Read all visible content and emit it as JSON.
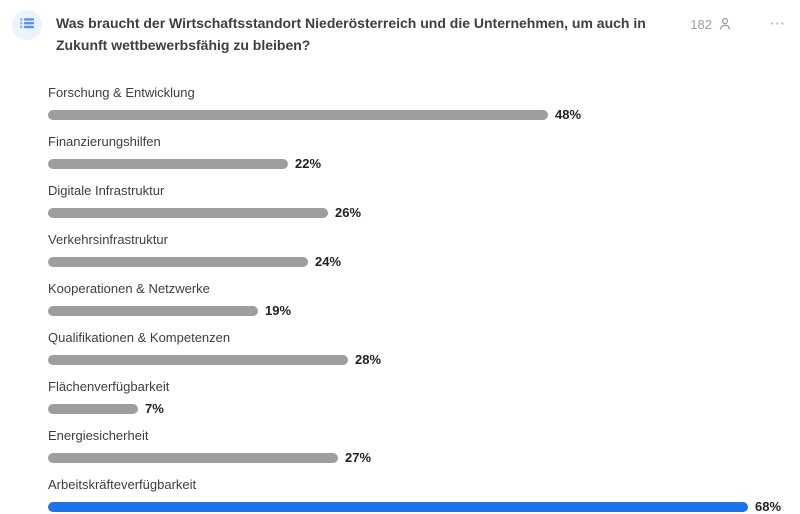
{
  "header": {
    "question": "Was braucht der Wirtschaftsstandort Niederösterreich und die Unternehmen, um auch in Zukunft wettbewerbsfähig zu bleiben?",
    "question_type_icon": "bulleted-list-icon",
    "respondents_count": "182",
    "respondents_icon": "person-icon",
    "menu_label": "···"
  },
  "colors": {
    "bar_default": "#9e9e9e",
    "bar_highlight": "#1f73e8",
    "icon_circle_bg": "#ecf3fe",
    "icon_blue": "#5b93ee",
    "muted_gray": "#9aa0a6"
  },
  "chart_data": {
    "type": "bar",
    "orientation": "horizontal",
    "unit": "%",
    "title": "Was braucht der Wirtschaftsstandort Niederösterreich und die Unternehmen, um auch in Zukunft wettbewerbsfähig zu bleiben?",
    "xlim": [
      0,
      70
    ],
    "grid": false,
    "legend": "none",
    "categories": [
      "Forschung & Entwicklung",
      "Finanzierungshilfen",
      "Digitale Infrastruktur",
      "Verkehrsinfrastruktur",
      "Kooperationen & Netzwerke",
      "Qualifikationen & Kompetenzen",
      "Flächenverfügbarkeit",
      "Energiesicherheit",
      "Arbeitskräfteverfügbarkeit"
    ],
    "values": [
      48,
      22,
      26,
      24,
      19,
      28,
      7,
      27,
      68
    ],
    "items": [
      {
        "label": "Forschung & Entwicklung",
        "value": 48,
        "percent_label": "48%",
        "highlighted": false
      },
      {
        "label": "Finanzierungshilfen",
        "value": 22,
        "percent_label": "22%",
        "highlighted": false
      },
      {
        "label": "Digitale Infrastruktur",
        "value": 26,
        "percent_label": "26%",
        "highlighted": false
      },
      {
        "label": "Verkehrsinfrastruktur",
        "value": 24,
        "percent_label": "24%",
        "highlighted": false
      },
      {
        "label": "Kooperationen & Netzwerke",
        "value": 19,
        "percent_label": "19%",
        "highlighted": false
      },
      {
        "label": "Qualifikationen & Kompetenzen",
        "value": 28,
        "percent_label": "28%",
        "highlighted": false
      },
      {
        "label": "Flächenverfügbarkeit",
        "value": 7,
        "percent_label": "7%",
        "highlighted": false
      },
      {
        "label": "Energiesicherheit",
        "value": 27,
        "percent_label": "27%",
        "highlighted": false
      },
      {
        "label": "Arbeitskräfteverfügbarkeit",
        "value": 68,
        "percent_label": "68%",
        "highlighted": true
      }
    ]
  }
}
